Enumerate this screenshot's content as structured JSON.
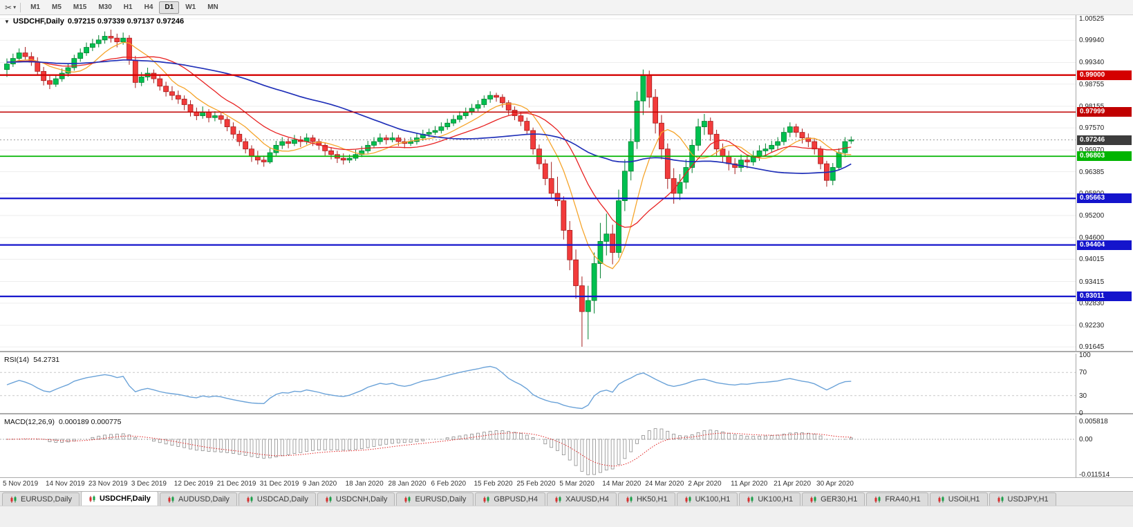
{
  "toolbar": {
    "icons": [
      {
        "name": "scissors-icon",
        "glyph": "✂"
      },
      {
        "name": "caret-down-icon",
        "glyph": "▾"
      }
    ],
    "timeframes": [
      {
        "label": "M1",
        "active": false
      },
      {
        "label": "M5",
        "active": false
      },
      {
        "label": "M15",
        "active": false
      },
      {
        "label": "M30",
        "active": false
      },
      {
        "label": "H1",
        "active": false
      },
      {
        "label": "H4",
        "active": false
      },
      {
        "label": "D1",
        "active": true
      },
      {
        "label": "W1",
        "active": false
      },
      {
        "label": "MN",
        "active": false
      }
    ]
  },
  "chart_data": {
    "type": "candlestick",
    "title": "USDCHF,Daily",
    "menu_glyph": "▼",
    "quote_text": "0.97215 0.97339 0.97137 0.97246",
    "quote": {
      "open": "0.97215",
      "high": "0.97339",
      "low": "0.97137",
      "close": "0.97246"
    },
    "y_axis_ticks": [
      "1.00525",
      "0.99940",
      "0.99340",
      "0.98755",
      "0.98155",
      "0.97570",
      "0.96970",
      "0.96385",
      "0.95800",
      "0.95200",
      "0.94600",
      "0.94015",
      "0.93415",
      "0.92830",
      "0.92230",
      "0.91645"
    ],
    "x_axis_labels": [
      {
        "text": "5 Nov 2019",
        "bar": 0
      },
      {
        "text": "14 Nov 2019",
        "bar": 7
      },
      {
        "text": "23 Nov 2019",
        "bar": 14
      },
      {
        "text": "3 Dec 2019",
        "bar": 21
      },
      {
        "text": "12 Dec 2019",
        "bar": 28
      },
      {
        "text": "21 Dec 2019",
        "bar": 35
      },
      {
        "text": "31 Dec 2019",
        "bar": 42
      },
      {
        "text": "9 Jan 2020",
        "bar": 49
      },
      {
        "text": "18 Jan 2020",
        "bar": 56
      },
      {
        "text": "28 Jan 2020",
        "bar": 63
      },
      {
        "text": "6 Feb 2020",
        "bar": 70
      },
      {
        "text": "15 Feb 2020",
        "bar": 77
      },
      {
        "text": "25 Feb 2020",
        "bar": 84
      },
      {
        "text": "5 Mar 2020",
        "bar": 91
      },
      {
        "text": "14 Mar 2020",
        "bar": 98
      },
      {
        "text": "24 Mar 2020",
        "bar": 105
      },
      {
        "text": "2 Apr 2020",
        "bar": 112
      },
      {
        "text": "11 Apr 2020",
        "bar": 119
      },
      {
        "text": "21 Apr 2020",
        "bar": 126
      },
      {
        "text": "30 Apr 2020",
        "bar": 133
      }
    ],
    "h_lines": [
      {
        "value": 0.99,
        "label": "0.99000",
        "color": "#d40000",
        "width": 2.4
      },
      {
        "value": 0.97999,
        "label": "0.97999",
        "color": "#c00000",
        "width": 1.6
      },
      {
        "value": 0.96803,
        "label": "0.96803",
        "color": "#00b400",
        "width": 1.8
      },
      {
        "value": 0.95663,
        "label": "0.95663",
        "color": "#1414cc",
        "width": 2.2
      },
      {
        "value": 0.94404,
        "label": "0.94404",
        "color": "#1414cc",
        "width": 2.2
      },
      {
        "value": 0.93011,
        "label": "0.93011",
        "color": "#1414cc",
        "width": 2.2
      }
    ],
    "current_price": {
      "value": 0.97246,
      "label": "0.97246",
      "bg": "#3c3c3c"
    },
    "up_color": "#00c050",
    "down_color": "#f23b3b",
    "ma_colors": {
      "fast": "#f5a42a",
      "medium": "#e82020",
      "slow": "#2030b8"
    },
    "indicators": {
      "rsi": {
        "label": "RSI(14)",
        "value_text": "54.2731",
        "period": 14,
        "scale": [
          "100",
          "70",
          "30",
          "0"
        ],
        "levels": [
          70,
          30
        ],
        "line_color": "#6aa2d8"
      },
      "macd": {
        "label": "MACD(12,26,9)",
        "value_text": "0.000189 0.000775",
        "fast": 12,
        "slow": 26,
        "signal": 9,
        "scale": [
          "0.005818",
          "0.00",
          "-0.011514"
        ],
        "histogram_color": "#8c8c8c",
        "signal_color": "#e02020"
      }
    },
    "candles": [
      [
        0.9915,
        0.9945,
        0.9895,
        0.993
      ],
      [
        0.993,
        0.9958,
        0.9922,
        0.9945
      ],
      [
        0.9945,
        0.9972,
        0.9938,
        0.996
      ],
      [
        0.996,
        0.9976,
        0.9942,
        0.995
      ],
      [
        0.995,
        0.9962,
        0.9925,
        0.9935
      ],
      [
        0.9935,
        0.9948,
        0.99,
        0.991
      ],
      [
        0.991,
        0.9922,
        0.9872,
        0.9885
      ],
      [
        0.9885,
        0.9898,
        0.9862,
        0.9875
      ],
      [
        0.9875,
        0.9902,
        0.9868,
        0.989
      ],
      [
        0.989,
        0.9918,
        0.9882,
        0.9905
      ],
      [
        0.9905,
        0.9932,
        0.9896,
        0.992
      ],
      [
        0.992,
        0.9955,
        0.9912,
        0.9945
      ],
      [
        0.9945,
        0.9972,
        0.9936,
        0.996
      ],
      [
        0.996,
        0.9988,
        0.9952,
        0.9975
      ],
      [
        0.9975,
        0.9998,
        0.9965,
        0.9985
      ],
      [
        0.9985,
        1.0008,
        0.9975,
        0.9995
      ],
      [
        0.9995,
        1.0018,
        0.9985,
        1.0005
      ],
      [
        1.0005,
        1.0023,
        0.9988,
        1.0
      ],
      [
        1.0,
        1.0012,
        0.9975,
        0.999
      ],
      [
        0.999,
        1.0015,
        0.9982,
        1.0
      ],
      [
        1.0,
        1.0008,
        0.9928,
        0.994
      ],
      [
        0.994,
        0.9952,
        0.9865,
        0.988
      ],
      [
        0.988,
        0.9908,
        0.987,
        0.9895
      ],
      [
        0.9895,
        0.992,
        0.9885,
        0.9905
      ],
      [
        0.9905,
        0.9915,
        0.9878,
        0.989
      ],
      [
        0.989,
        0.99,
        0.9858,
        0.987
      ],
      [
        0.987,
        0.9882,
        0.9842,
        0.9855
      ],
      [
        0.9855,
        0.987,
        0.9832,
        0.9845
      ],
      [
        0.9845,
        0.9858,
        0.9822,
        0.9835
      ],
      [
        0.9835,
        0.9845,
        0.9805,
        0.982
      ],
      [
        0.982,
        0.9832,
        0.9788,
        0.98
      ],
      [
        0.98,
        0.9812,
        0.9778,
        0.979
      ],
      [
        0.979,
        0.9815,
        0.9782,
        0.98
      ],
      [
        0.98,
        0.9808,
        0.9772,
        0.9785
      ],
      [
        0.9785,
        0.9802,
        0.9775,
        0.979
      ],
      [
        0.979,
        0.9798,
        0.9768,
        0.978
      ],
      [
        0.978,
        0.9788,
        0.9748,
        0.976
      ],
      [
        0.976,
        0.9772,
        0.9728,
        0.974
      ],
      [
        0.974,
        0.975,
        0.9708,
        0.972
      ],
      [
        0.972,
        0.973,
        0.9688,
        0.97
      ],
      [
        0.97,
        0.971,
        0.9665,
        0.968
      ],
      [
        0.968,
        0.9695,
        0.9658,
        0.967
      ],
      [
        0.967,
        0.9682,
        0.9652,
        0.9665
      ],
      [
        0.9665,
        0.9702,
        0.966,
        0.969
      ],
      [
        0.969,
        0.9722,
        0.9682,
        0.971
      ],
      [
        0.971,
        0.9732,
        0.97,
        0.972
      ],
      [
        0.972,
        0.973,
        0.9702,
        0.9715
      ],
      [
        0.9715,
        0.9738,
        0.9708,
        0.9725
      ],
      [
        0.9725,
        0.9735,
        0.9705,
        0.972
      ],
      [
        0.972,
        0.9742,
        0.9712,
        0.973
      ],
      [
        0.973,
        0.9738,
        0.9708,
        0.972
      ],
      [
        0.972,
        0.9728,
        0.9698,
        0.971
      ],
      [
        0.971,
        0.9718,
        0.9682,
        0.9695
      ],
      [
        0.9695,
        0.9705,
        0.9672,
        0.9685
      ],
      [
        0.9685,
        0.9695,
        0.9662,
        0.9675
      ],
      [
        0.9675,
        0.9688,
        0.9658,
        0.967
      ],
      [
        0.967,
        0.9685,
        0.9662,
        0.9675
      ],
      [
        0.9675,
        0.9698,
        0.9668,
        0.9685
      ],
      [
        0.9685,
        0.9708,
        0.9678,
        0.9695
      ],
      [
        0.9695,
        0.9722,
        0.9688,
        0.971
      ],
      [
        0.971,
        0.9732,
        0.9702,
        0.972
      ],
      [
        0.972,
        0.9742,
        0.9712,
        0.973
      ],
      [
        0.973,
        0.9738,
        0.9712,
        0.9725
      ],
      [
        0.9725,
        0.9745,
        0.9718,
        0.973
      ],
      [
        0.973,
        0.9738,
        0.9708,
        0.972
      ],
      [
        0.972,
        0.973,
        0.9702,
        0.9715
      ],
      [
        0.9715,
        0.9732,
        0.9708,
        0.972
      ],
      [
        0.972,
        0.9742,
        0.9712,
        0.973
      ],
      [
        0.973,
        0.9752,
        0.9722,
        0.974
      ],
      [
        0.974,
        0.9755,
        0.9732,
        0.9745
      ],
      [
        0.9745,
        0.9762,
        0.9738,
        0.975
      ],
      [
        0.975,
        0.9772,
        0.9742,
        0.976
      ],
      [
        0.976,
        0.9782,
        0.9752,
        0.977
      ],
      [
        0.977,
        0.9792,
        0.9762,
        0.978
      ],
      [
        0.978,
        0.9802,
        0.9772,
        0.979
      ],
      [
        0.979,
        0.9812,
        0.9782,
        0.98
      ],
      [
        0.98,
        0.9822,
        0.9792,
        0.981
      ],
      [
        0.981,
        0.9832,
        0.9802,
        0.982
      ],
      [
        0.982,
        0.9845,
        0.9812,
        0.9835
      ],
      [
        0.9835,
        0.9856,
        0.9825,
        0.9845
      ],
      [
        0.9845,
        0.9852,
        0.9828,
        0.984
      ],
      [
        0.984,
        0.9848,
        0.9812,
        0.9825
      ],
      [
        0.9825,
        0.9832,
        0.9792,
        0.9805
      ],
      [
        0.9805,
        0.9815,
        0.9778,
        0.979
      ],
      [
        0.979,
        0.98,
        0.9762,
        0.9775
      ],
      [
        0.9775,
        0.9785,
        0.9738,
        0.975
      ],
      [
        0.975,
        0.9758,
        0.9685,
        0.97
      ],
      [
        0.97,
        0.9712,
        0.9645,
        0.966
      ],
      [
        0.966,
        0.9672,
        0.9602,
        0.962
      ],
      [
        0.962,
        0.9665,
        0.9565,
        0.958
      ],
      [
        0.958,
        0.9625,
        0.9545,
        0.956
      ],
      [
        0.956,
        0.9572,
        0.9455,
        0.948
      ],
      [
        0.948,
        0.9505,
        0.9372,
        0.94
      ],
      [
        0.94,
        0.9428,
        0.9295,
        0.933
      ],
      [
        0.933,
        0.9355,
        0.9165,
        0.926
      ],
      [
        0.926,
        0.933,
        0.9185,
        0.929
      ],
      [
        0.929,
        0.942,
        0.9255,
        0.939
      ],
      [
        0.939,
        0.95,
        0.935,
        0.945
      ],
      [
        0.945,
        0.9525,
        0.9412,
        0.947
      ],
      [
        0.947,
        0.9495,
        0.9388,
        0.942
      ],
      [
        0.942,
        0.959,
        0.9405,
        0.956
      ],
      [
        0.956,
        0.9672,
        0.9532,
        0.964
      ],
      [
        0.964,
        0.9755,
        0.9615,
        0.972
      ],
      [
        0.972,
        0.9855,
        0.97,
        0.983
      ],
      [
        0.983,
        0.9915,
        0.9792,
        0.99
      ],
      [
        0.99,
        0.9912,
        0.9812,
        0.984
      ],
      [
        0.984,
        0.9862,
        0.9742,
        0.977
      ],
      [
        0.977,
        0.9792,
        0.9672,
        0.97
      ],
      [
        0.97,
        0.9715,
        0.9592,
        0.962
      ],
      [
        0.962,
        0.9648,
        0.9552,
        0.958
      ],
      [
        0.958,
        0.9632,
        0.9562,
        0.961
      ],
      [
        0.961,
        0.9672,
        0.9592,
        0.965
      ],
      [
        0.965,
        0.9725,
        0.9635,
        0.971
      ],
      [
        0.971,
        0.9782,
        0.9695,
        0.976
      ],
      [
        0.976,
        0.9795,
        0.9738,
        0.9775
      ],
      [
        0.9775,
        0.9785,
        0.9722,
        0.974
      ],
      [
        0.974,
        0.9752,
        0.9682,
        0.97
      ],
      [
        0.97,
        0.9715,
        0.9662,
        0.968
      ],
      [
        0.968,
        0.9695,
        0.9642,
        0.966
      ],
      [
        0.966,
        0.9675,
        0.9632,
        0.965
      ],
      [
        0.965,
        0.9685,
        0.9638,
        0.967
      ],
      [
        0.967,
        0.9682,
        0.9648,
        0.9665
      ],
      [
        0.9665,
        0.9695,
        0.9655,
        0.968
      ],
      [
        0.968,
        0.971,
        0.9668,
        0.9695
      ],
      [
        0.9695,
        0.9715,
        0.9682,
        0.97
      ],
      [
        0.97,
        0.9722,
        0.969,
        0.971
      ],
      [
        0.971,
        0.9732,
        0.9698,
        0.972
      ],
      [
        0.972,
        0.9758,
        0.971,
        0.9745
      ],
      [
        0.9745,
        0.9772,
        0.9732,
        0.976
      ],
      [
        0.976,
        0.9768,
        0.9732,
        0.9745
      ],
      [
        0.9745,
        0.9755,
        0.9715,
        0.973
      ],
      [
        0.973,
        0.9742,
        0.9705,
        0.972
      ],
      [
        0.972,
        0.9728,
        0.9685,
        0.97
      ],
      [
        0.97,
        0.9708,
        0.9645,
        0.966
      ],
      [
        0.966,
        0.9668,
        0.9598,
        0.9615
      ],
      [
        0.9615,
        0.9662,
        0.9602,
        0.965
      ],
      [
        0.965,
        0.9702,
        0.9642,
        0.969
      ],
      [
        0.969,
        0.9732,
        0.9678,
        0.972
      ],
      [
        0.97215,
        0.97339,
        0.97137,
        0.97246
      ]
    ]
  },
  "tabs": [
    {
      "label": "EURUSD,Daily",
      "active": false
    },
    {
      "label": "USDCHF,Daily",
      "active": true
    },
    {
      "label": "AUDUSD,Daily",
      "active": false
    },
    {
      "label": "USDCAD,Daily",
      "active": false
    },
    {
      "label": "USDCNH,Daily",
      "active": false
    },
    {
      "label": "EURUSD,Daily",
      "active": false
    },
    {
      "label": "GBPUSD,H4",
      "active": false
    },
    {
      "label": "XAUUSD,H4",
      "active": false
    },
    {
      "label": "HK50,H1",
      "active": false
    },
    {
      "label": "UK100,H1",
      "active": false
    },
    {
      "label": "UK100,H1",
      "active": false
    },
    {
      "label": "GER30,H1",
      "active": false
    },
    {
      "label": "FRA40,H1",
      "active": false
    },
    {
      "label": "USOil,H1",
      "active": false
    },
    {
      "label": "USDJPY,H1",
      "active": false
    }
  ]
}
